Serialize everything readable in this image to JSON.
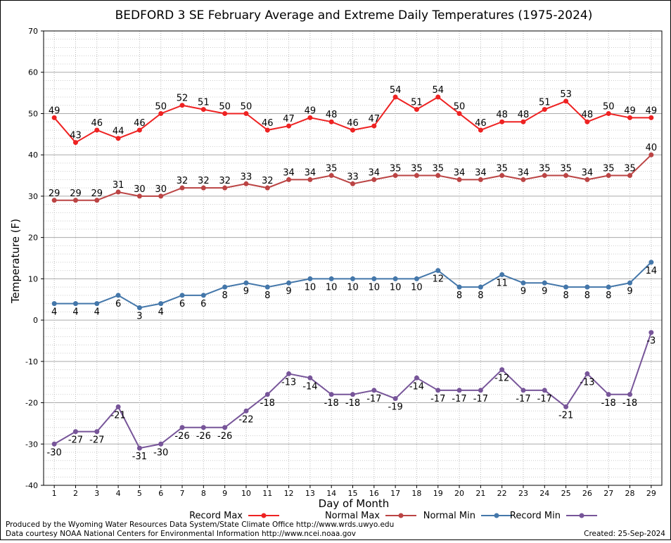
{
  "chart_data": {
    "type": "line",
    "title": "BEDFORD 3 SE February Average and Extreme Daily Temperatures (1975-2024)",
    "xlabel": "Day of Month",
    "ylabel": "Temperature (F)",
    "x": [
      1,
      2,
      3,
      4,
      5,
      6,
      7,
      8,
      9,
      10,
      11,
      12,
      13,
      14,
      15,
      16,
      17,
      18,
      19,
      20,
      21,
      22,
      23,
      24,
      25,
      26,
      27,
      28,
      29
    ],
    "ylim": [
      -40,
      70
    ],
    "yticks": [
      -40,
      -30,
      -20,
      -10,
      0,
      10,
      20,
      30,
      40,
      50,
      60,
      70
    ],
    "grid": true,
    "legend_position": "bottom",
    "series": [
      {
        "name": "Record Max",
        "color": "#ee2222",
        "values": [
          49,
          43,
          46,
          44,
          46,
          50,
          52,
          51,
          50,
          50,
          46,
          47,
          49,
          48,
          46,
          47,
          54,
          51,
          54,
          50,
          46,
          48,
          48,
          51,
          53,
          48,
          50,
          49,
          49
        ]
      },
      {
        "name": "Normal Max",
        "color": "#bb4444",
        "values": [
          29,
          29,
          29,
          31,
          30,
          30,
          32,
          32,
          32,
          33,
          32,
          34,
          34,
          35,
          33,
          34,
          35,
          35,
          35,
          34,
          34,
          35,
          34,
          35,
          35,
          34,
          35,
          35,
          40
        ]
      },
      {
        "name": "Normal Min",
        "color": "#4477aa",
        "values": [
          4,
          4,
          4,
          6,
          3,
          4,
          6,
          6,
          8,
          9,
          8,
          9,
          10,
          10,
          10,
          10,
          10,
          10,
          12,
          8,
          8,
          11,
          9,
          9,
          8,
          8,
          8,
          9,
          14
        ]
      },
      {
        "name": "Record Min",
        "color": "#775599",
        "values": [
          -30,
          -27,
          -27,
          -21,
          -31,
          -30,
          -26,
          -26,
          -26,
          -22,
          -18,
          -13,
          -14,
          -18,
          -18,
          -17,
          -19,
          -14,
          -17,
          -17,
          -17,
          -12,
          -17,
          -17,
          -21,
          -13,
          -18,
          -18,
          -3
        ]
      }
    ]
  },
  "footer": {
    "line1": "Produced by the Wyoming Water Resources Data System/State Climate Office http://www.wrds.uwyo.edu",
    "line2": "Data courtesy NOAA National Centers for Environmental Information http://www.ncei.noaa.gov",
    "created": "Created: 25-Sep-2024"
  }
}
